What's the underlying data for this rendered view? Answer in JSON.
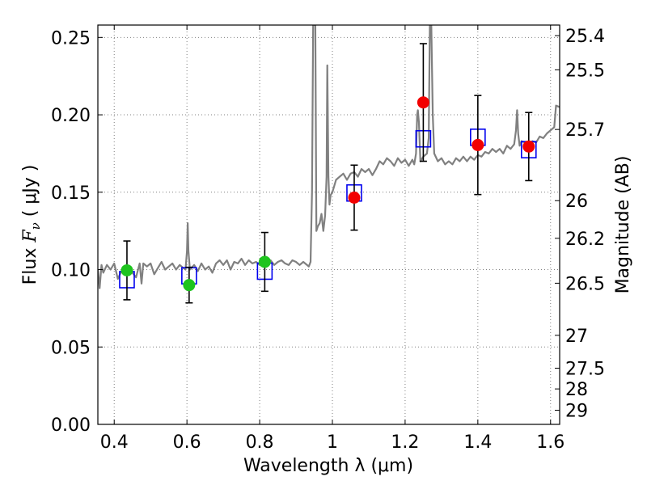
{
  "chart_data": {
    "type": "scatter",
    "xlabel": "Wavelength  λ (μm)",
    "ylabel_prefix": "Flux  ",
    "ylabel_symbol": "F",
    "ylabel_sub": "ν",
    "ylabel_suffix": "  ( μJy )",
    "ylabel_right": "Magnitude (AB)",
    "xlim": [
      0.355,
      1.625
    ],
    "ylim": [
      0.0,
      0.258
    ],
    "grid": true,
    "x_ticks": [
      {
        "v": 0.4,
        "label": "0.4"
      },
      {
        "v": 0.6,
        "label": "0.6"
      },
      {
        "v": 0.8,
        "label": "0.8"
      },
      {
        "v": 1.0,
        "label": "1"
      },
      {
        "v": 1.2,
        "label": "1.2"
      },
      {
        "v": 1.4,
        "label": "1.4"
      },
      {
        "v": 1.6,
        "label": "1.6"
      }
    ],
    "y_ticks": [
      {
        "v": 0.0,
        "label": "0.00"
      },
      {
        "v": 0.05,
        "label": "0.05"
      },
      {
        "v": 0.1,
        "label": "0.10"
      },
      {
        "v": 0.15,
        "label": "0.15"
      },
      {
        "v": 0.2,
        "label": "0.20"
      },
      {
        "v": 0.25,
        "label": "0.25"
      }
    ],
    "mag_ticks": [
      "25.4",
      "25.5",
      "25.7",
      "26",
      "26.2",
      "26.5",
      "27",
      "27.5",
      "28",
      "29"
    ],
    "observed_optical": [
      {
        "x": 0.435,
        "y": 0.0995,
        "err": 0.019
      },
      {
        "x": 0.606,
        "y": 0.09,
        "err": 0.0115
      },
      {
        "x": 0.814,
        "y": 0.105,
        "err": 0.019
      }
    ],
    "observed_nir": [
      {
        "x": 1.06,
        "y": 0.1465,
        "err": 0.021
      },
      {
        "x": 1.25,
        "y": 0.208,
        "err": 0.038
      },
      {
        "x": 1.4,
        "y": 0.1805,
        "err": 0.032
      },
      {
        "x": 1.54,
        "y": 0.1795,
        "err": 0.022
      }
    ],
    "model_photometry": [
      {
        "x": 0.435,
        "y": 0.0935
      },
      {
        "x": 0.606,
        "y": 0.096
      },
      {
        "x": 0.814,
        "y": 0.099
      },
      {
        "x": 1.06,
        "y": 0.1495
      },
      {
        "x": 1.25,
        "y": 0.1845
      },
      {
        "x": 1.4,
        "y": 0.1855
      },
      {
        "x": 1.54,
        "y": 0.1775
      }
    ],
    "spectrum": [
      [
        0.355,
        0.1
      ],
      [
        0.36,
        0.088
      ],
      [
        0.365,
        0.103
      ],
      [
        0.37,
        0.098
      ],
      [
        0.38,
        0.103
      ],
      [
        0.39,
        0.1
      ],
      [
        0.4,
        0.104
      ],
      [
        0.41,
        0.094
      ],
      [
        0.42,
        0.099
      ],
      [
        0.43,
        0.097
      ],
      [
        0.44,
        0.102
      ],
      [
        0.45,
        0.098
      ],
      [
        0.46,
        0.095
      ],
      [
        0.47,
        0.104
      ],
      [
        0.475,
        0.091
      ],
      [
        0.48,
        0.104
      ],
      [
        0.49,
        0.102
      ],
      [
        0.5,
        0.104
      ],
      [
        0.51,
        0.097
      ],
      [
        0.52,
        0.101
      ],
      [
        0.53,
        0.105
      ],
      [
        0.54,
        0.1
      ],
      [
        0.55,
        0.102
      ],
      [
        0.56,
        0.104
      ],
      [
        0.57,
        0.1
      ],
      [
        0.58,
        0.103
      ],
      [
        0.59,
        0.101
      ],
      [
        0.596,
        0.1
      ],
      [
        0.6,
        0.112
      ],
      [
        0.602,
        0.13
      ],
      [
        0.604,
        0.112
      ],
      [
        0.608,
        0.1
      ],
      [
        0.62,
        0.103
      ],
      [
        0.63,
        0.099
      ],
      [
        0.64,
        0.104
      ],
      [
        0.65,
        0.1
      ],
      [
        0.66,
        0.102
      ],
      [
        0.67,
        0.098
      ],
      [
        0.68,
        0.104
      ],
      [
        0.69,
        0.106
      ],
      [
        0.7,
        0.103
      ],
      [
        0.71,
        0.106
      ],
      [
        0.72,
        0.1
      ],
      [
        0.73,
        0.105
      ],
      [
        0.74,
        0.104
      ],
      [
        0.75,
        0.107
      ],
      [
        0.76,
        0.103
      ],
      [
        0.77,
        0.106
      ],
      [
        0.78,
        0.104
      ],
      [
        0.79,
        0.105
      ],
      [
        0.8,
        0.103
      ],
      [
        0.81,
        0.107
      ],
      [
        0.82,
        0.104
      ],
      [
        0.83,
        0.106
      ],
      [
        0.84,
        0.103
      ],
      [
        0.85,
        0.105
      ],
      [
        0.86,
        0.106
      ],
      [
        0.87,
        0.104
      ],
      [
        0.88,
        0.103
      ],
      [
        0.89,
        0.106
      ],
      [
        0.9,
        0.105
      ],
      [
        0.91,
        0.103
      ],
      [
        0.92,
        0.105
      ],
      [
        0.925,
        0.104
      ],
      [
        0.935,
        0.102
      ],
      [
        0.94,
        0.105
      ],
      [
        0.944,
        0.15
      ],
      [
        0.947,
        0.258
      ],
      [
        0.95,
        0.258
      ],
      [
        0.953,
        0.258
      ],
      [
        0.956,
        0.125
      ],
      [
        0.96,
        0.128
      ],
      [
        0.965,
        0.13
      ],
      [
        0.97,
        0.136
      ],
      [
        0.975,
        0.125
      ],
      [
        0.98,
        0.135
      ],
      [
        0.984,
        0.16
      ],
      [
        0.986,
        0.232
      ],
      [
        0.989,
        0.16
      ],
      [
        0.992,
        0.142
      ],
      [
        0.995,
        0.148
      ],
      [
        1.0,
        0.15
      ],
      [
        1.01,
        0.158
      ],
      [
        1.02,
        0.16
      ],
      [
        1.03,
        0.162
      ],
      [
        1.04,
        0.158
      ],
      [
        1.05,
        0.162
      ],
      [
        1.06,
        0.163
      ],
      [
        1.07,
        0.16
      ],
      [
        1.08,
        0.165
      ],
      [
        1.09,
        0.163
      ],
      [
        1.1,
        0.165
      ],
      [
        1.11,
        0.161
      ],
      [
        1.12,
        0.165
      ],
      [
        1.13,
        0.17
      ],
      [
        1.14,
        0.168
      ],
      [
        1.15,
        0.172
      ],
      [
        1.16,
        0.17
      ],
      [
        1.17,
        0.167
      ],
      [
        1.18,
        0.172
      ],
      [
        1.19,
        0.169
      ],
      [
        1.2,
        0.171
      ],
      [
        1.21,
        0.167
      ],
      [
        1.22,
        0.171
      ],
      [
        1.225,
        0.168
      ],
      [
        1.23,
        0.175
      ],
      [
        1.233,
        0.2
      ],
      [
        1.235,
        0.203
      ],
      [
        1.238,
        0.195
      ],
      [
        1.242,
        0.17
      ],
      [
        1.25,
        0.173
      ],
      [
        1.26,
        0.175
      ],
      [
        1.265,
        0.185
      ],
      [
        1.268,
        0.258
      ],
      [
        1.272,
        0.258
      ],
      [
        1.276,
        0.2
      ],
      [
        1.28,
        0.175
      ],
      [
        1.29,
        0.17
      ],
      [
        1.3,
        0.172
      ],
      [
        1.31,
        0.168
      ],
      [
        1.32,
        0.17
      ],
      [
        1.33,
        0.168
      ],
      [
        1.34,
        0.172
      ],
      [
        1.35,
        0.17
      ],
      [
        1.36,
        0.173
      ],
      [
        1.37,
        0.17
      ],
      [
        1.38,
        0.173
      ],
      [
        1.39,
        0.171
      ],
      [
        1.4,
        0.174
      ],
      [
        1.41,
        0.173
      ],
      [
        1.42,
        0.176
      ],
      [
        1.43,
        0.175
      ],
      [
        1.44,
        0.178
      ],
      [
        1.45,
        0.176
      ],
      [
        1.46,
        0.178
      ],
      [
        1.47,
        0.175
      ],
      [
        1.48,
        0.18
      ],
      [
        1.49,
        0.178
      ],
      [
        1.5,
        0.181
      ],
      [
        1.505,
        0.19
      ],
      [
        1.508,
        0.203
      ],
      [
        1.511,
        0.188
      ],
      [
        1.515,
        0.18
      ],
      [
        1.52,
        0.183
      ],
      [
        1.53,
        0.182
      ],
      [
        1.54,
        0.18
      ],
      [
        1.55,
        0.183
      ],
      [
        1.56,
        0.182
      ],
      [
        1.57,
        0.186
      ],
      [
        1.58,
        0.185
      ],
      [
        1.59,
        0.188
      ],
      [
        1.6,
        0.19
      ],
      [
        1.61,
        0.192
      ],
      [
        1.615,
        0.206
      ],
      [
        1.625,
        0.205
      ]
    ]
  },
  "colors": {
    "spectrum": "#808080",
    "optical_points": "#1ec41e",
    "nir_points": "#f20000",
    "model_squares": "#0000ee",
    "error_bars": "#000000",
    "grid": "#808080",
    "axis": "#000000"
  }
}
